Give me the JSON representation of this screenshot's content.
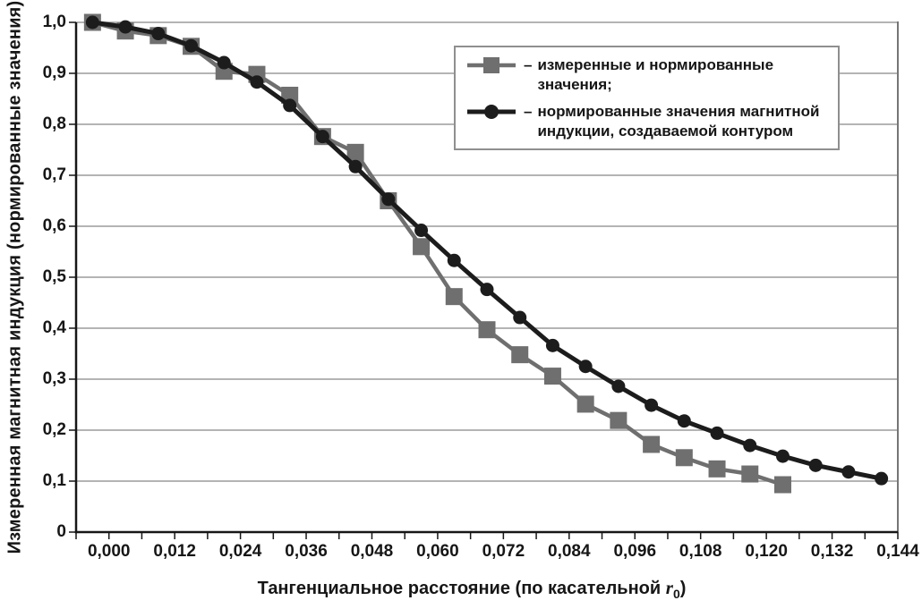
{
  "chart_data": {
    "type": "line",
    "title": "",
    "ylabel": "Измеренная магнитная индукция (нормированные значения)",
    "xlabel": {
      "prefix": "Тангенциальное расстояние (по касательной ",
      "symbol": "r",
      "subscript": "0",
      "suffix": ")"
    },
    "legend_position": "top-right",
    "legend_dash": "–",
    "grid": "horizontal",
    "ylim": [
      0,
      1.0
    ],
    "x": [
      0.0,
      0.006,
      0.012,
      0.018,
      0.024,
      0.03,
      0.036,
      0.042,
      0.048,
      0.054,
      0.06,
      0.066,
      0.072,
      0.078,
      0.084,
      0.09,
      0.096,
      0.102,
      0.108,
      0.114,
      0.12,
      0.126,
      0.132,
      0.138,
      0.144
    ],
    "x_tick_labels": [
      "0,000",
      "0,012",
      "0,024",
      "0,036",
      "0,048",
      "0,060",
      "0,072",
      "0,084",
      "0,096",
      "0,108",
      "0,120",
      "0,132",
      "0,144"
    ],
    "y_tick_values": [
      0,
      0.1,
      0.2,
      0.3,
      0.4,
      0.5,
      0.6,
      0.7,
      0.8,
      0.9,
      1.0
    ],
    "y_tick_labels": [
      "0",
      "0,1",
      "0,2",
      "0,3",
      "0,4",
      "0,5",
      "0,6",
      "0,7",
      "0,8",
      "0,9",
      "1,0"
    ],
    "series": [
      {
        "name": "измеренные и нормированные\nзначения;",
        "marker": "square",
        "color": "#6f6f6f",
        "values": [
          1.0,
          0.983,
          0.974,
          0.953,
          0.904,
          0.898,
          0.857,
          0.776,
          0.745,
          0.65,
          0.56,
          0.462,
          0.397,
          0.348,
          0.306,
          0.251,
          0.219,
          0.172,
          0.146,
          0.124,
          0.114,
          0.093
        ]
      },
      {
        "name": "нормированные значения магнитной\nиндукции, создаваемой контуром",
        "marker": "circle",
        "color": "#1c1c1c",
        "values": [
          1.0,
          0.991,
          0.978,
          0.954,
          0.921,
          0.883,
          0.837,
          0.776,
          0.717,
          0.653,
          0.592,
          0.533,
          0.476,
          0.421,
          0.366,
          0.325,
          0.286,
          0.249,
          0.218,
          0.194,
          0.17,
          0.149,
          0.131,
          0.118,
          0.105
        ]
      }
    ],
    "colors": {
      "gridline": "#9c9c9c",
      "plot_border": "#767676",
      "axis": "#161616",
      "series_measured": "#6f6f6f",
      "series_contour": "#1c1c1c"
    }
  }
}
